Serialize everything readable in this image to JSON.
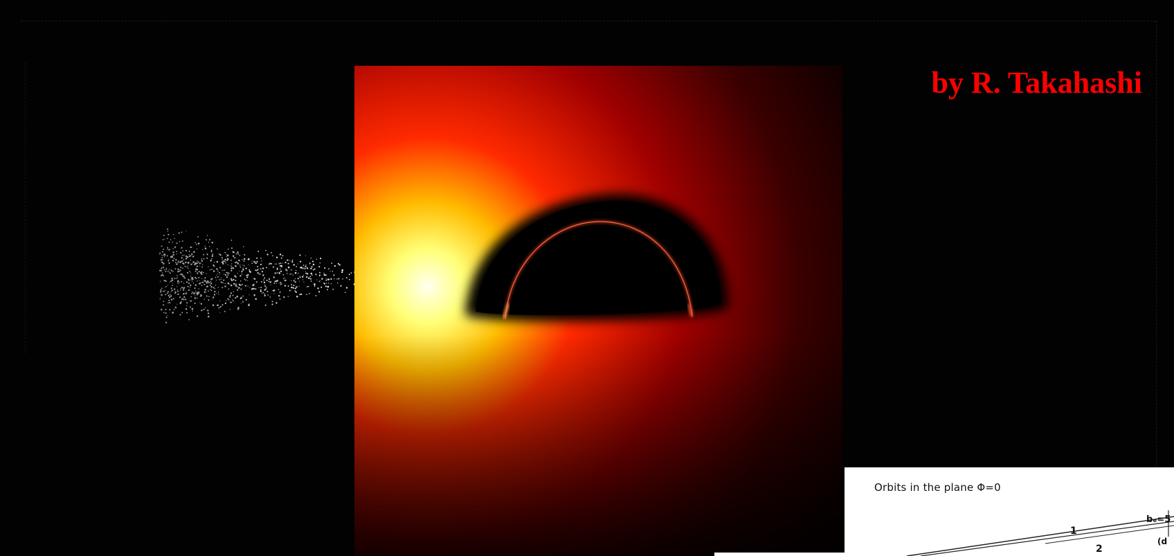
{
  "credit": "by R. Takahashi",
  "diagram": {
    "title": "Orbits in the plane  Φ=0",
    "orbit_label_1": "1",
    "orbit_label_2": "2",
    "bc_label": "bₑ=5",
    "d_label": "(d"
  },
  "colors": {
    "credit": "#ff0000",
    "background": "#000000",
    "disk_hot": "#ffff99",
    "disk_mid": "#ff2200",
    "disk_outer": "#550000"
  }
}
